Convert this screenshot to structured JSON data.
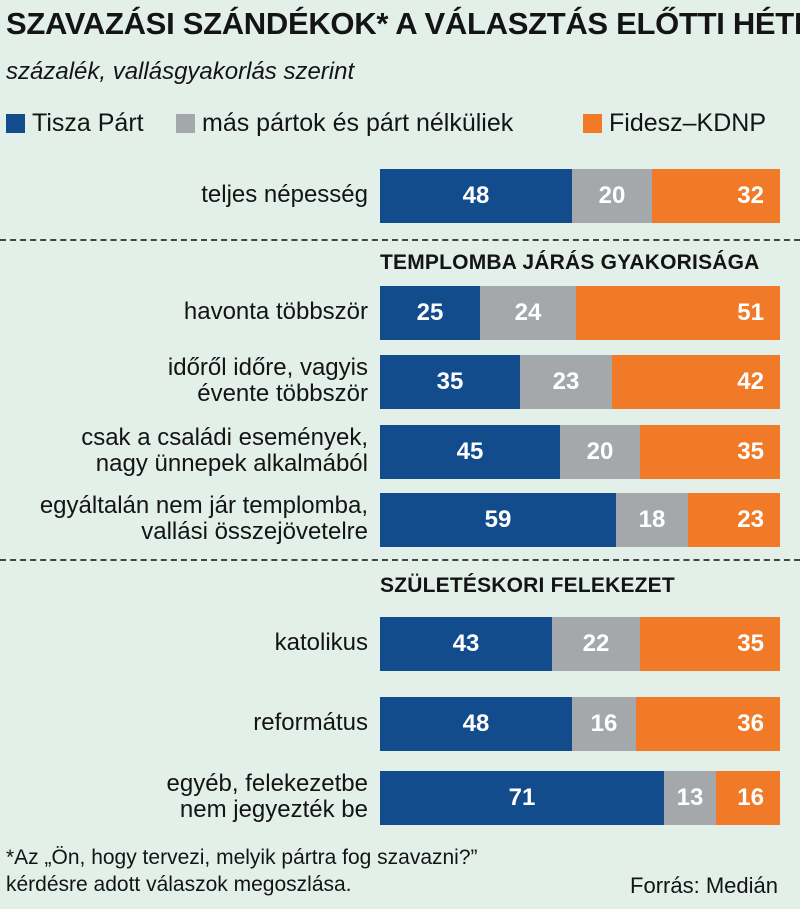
{
  "title": "SZAVAZÁSI SZÁNDÉKOK* A VÁLASZTÁS ELŐTTI HÉTEN",
  "subtitle": "százalék, vallásgyakorlás szerint",
  "legend": [
    {
      "label": "Tisza Párt",
      "color": "#134c8c"
    },
    {
      "label": "más pártok és párt nélküliek",
      "color": "#a5a8ab"
    },
    {
      "label": "Fidesz–KDNP",
      "color": "#f07a28"
    }
  ],
  "sections": [
    {
      "title": ""
    },
    {
      "title": "TEMPLOMBA JÁRÁS GYAKORISÁGA"
    },
    {
      "title": "SZÜLETÉSKORI FELEKEZET"
    }
  ],
  "chart_data": {
    "type": "bar",
    "stacked": true,
    "orientation": "horizontal",
    "unit": "százalék",
    "categories": [
      [
        "teljes népesség"
      ],
      [
        "havonta többször"
      ],
      [
        "időről időre, vagyis",
        "évente többször"
      ],
      [
        "csak a családi események,",
        "nagy ünnepek alkalmából"
      ],
      [
        "egyáltalán nem jár templomba,",
        "vallási összejövetelre"
      ],
      [
        "katolikus"
      ],
      [
        "református"
      ],
      [
        "egyéb, felekezetbe",
        "nem jegyezték be"
      ]
    ],
    "category_section": [
      0,
      1,
      1,
      1,
      1,
      2,
      2,
      2
    ],
    "series": [
      {
        "name": "Tisza Párt",
        "values": [
          48,
          25,
          35,
          45,
          59,
          43,
          48,
          71
        ]
      },
      {
        "name": "más pártok és párt nélküliek",
        "values": [
          20,
          24,
          23,
          20,
          18,
          22,
          16,
          13
        ]
      },
      {
        "name": "Fidesz–KDNP",
        "values": [
          32,
          51,
          42,
          35,
          23,
          35,
          36,
          16
        ]
      }
    ]
  },
  "footnote": [
    "*Az „Ön, hogy tervezi, melyik pártra fog szavazni?”",
    "kérdésre adott válaszok megoszlása."
  ],
  "source": "Forrás: Medián"
}
